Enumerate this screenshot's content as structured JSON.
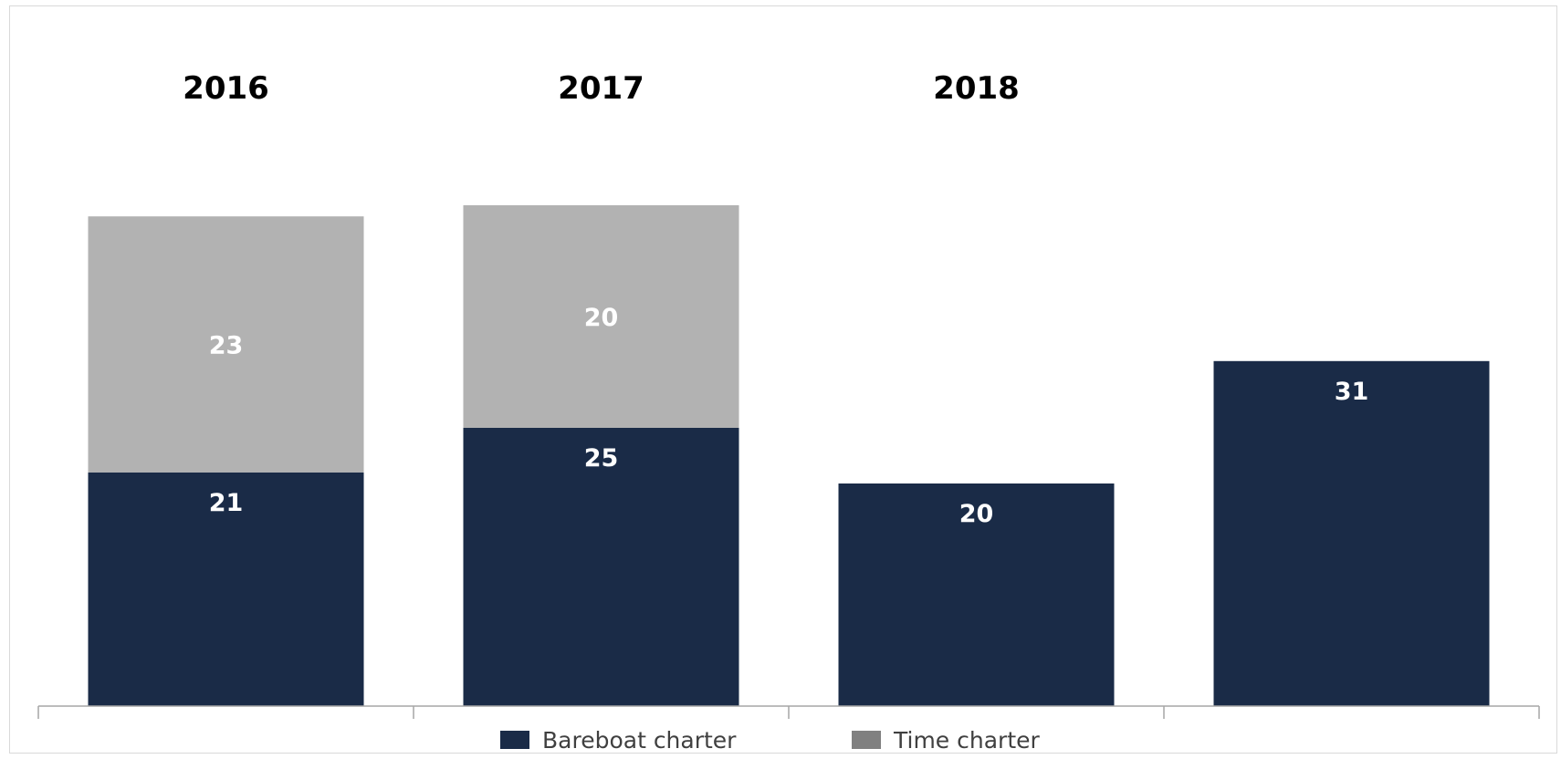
{
  "chart_data": {
    "type": "bar",
    "stacked": true,
    "categories": [
      "2016",
      "2017",
      "2018",
      ""
    ],
    "category_labels_position": "top",
    "series": [
      {
        "name": "Bareboat charter",
        "color": "#1a2b47",
        "values": [
          21,
          25,
          20,
          31
        ]
      },
      {
        "name": "Time charter",
        "color": "#b2b2b2",
        "values": [
          23,
          20,
          null,
          null
        ]
      }
    ],
    "legend": {
      "position": "bottom",
      "entries": [
        {
          "label": "Bareboat charter",
          "color": "#1a2b47"
        },
        {
          "label": "Time charter",
          "color": "#808080"
        }
      ]
    },
    "ylim": [
      0,
      62
    ],
    "grid": false,
    "title": "",
    "xlabel": "",
    "ylabel": ""
  }
}
